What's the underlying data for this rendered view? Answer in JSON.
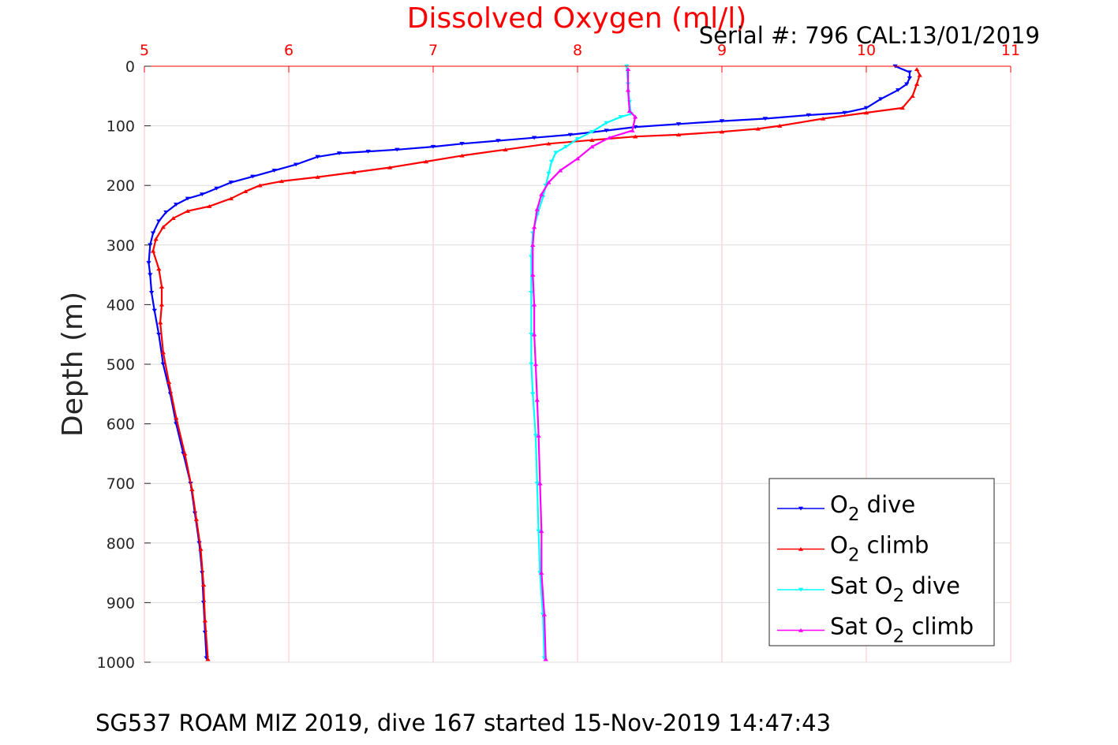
{
  "chart_data": {
    "type": "line",
    "title": "Dissolved Oxygen (ml/l)",
    "subtitle": "Serial #: 796  CAL:13/01/2019",
    "footer": "SG537 ROAM MIZ 2019, dive 167 started 15-Nov-2019 14:47:43",
    "xlabel": "",
    "ylabel": "Depth (m)",
    "xlim": [
      5,
      11
    ],
    "ylim": [
      0,
      1000
    ],
    "y_reversed": true,
    "x_axis_position": "top",
    "x_ticks": [
      5,
      6,
      7,
      8,
      9,
      10,
      11
    ],
    "y_ticks": [
      0,
      100,
      200,
      300,
      400,
      500,
      600,
      700,
      800,
      900,
      1000
    ],
    "grid": true,
    "legend_position": "bottom-right",
    "colors": {
      "x_tick": "#ff0000",
      "grid": "#ffc0cb",
      "axis": "#ff0000"
    },
    "series": [
      {
        "label": "O2 dive",
        "legend_main": "O",
        "legend_sub": "2",
        "legend_tail": " dive",
        "color": "#0000ff",
        "marker": "triangle-down",
        "points": [
          [
            10.2,
            0
          ],
          [
            10.3,
            10
          ],
          [
            10.3,
            20
          ],
          [
            10.28,
            30
          ],
          [
            10.22,
            40
          ],
          [
            10.1,
            55
          ],
          [
            10.0,
            70
          ],
          [
            9.85,
            78
          ],
          [
            9.6,
            82
          ],
          [
            9.3,
            88
          ],
          [
            9.0,
            92
          ],
          [
            8.7,
            97
          ],
          [
            8.4,
            102
          ],
          [
            8.2,
            108
          ],
          [
            7.95,
            115
          ],
          [
            7.7,
            120
          ],
          [
            7.45,
            125
          ],
          [
            7.2,
            130
          ],
          [
            7.0,
            135
          ],
          [
            6.75,
            140
          ],
          [
            6.55,
            143
          ],
          [
            6.35,
            146
          ],
          [
            6.2,
            152
          ],
          [
            6.05,
            165
          ],
          [
            5.9,
            175
          ],
          [
            5.75,
            185
          ],
          [
            5.6,
            195
          ],
          [
            5.5,
            205
          ],
          [
            5.4,
            215
          ],
          [
            5.3,
            222
          ],
          [
            5.22,
            232
          ],
          [
            5.15,
            245
          ],
          [
            5.1,
            260
          ],
          [
            5.06,
            280
          ],
          [
            5.04,
            300
          ],
          [
            5.03,
            330
          ],
          [
            5.04,
            350
          ],
          [
            5.05,
            380
          ],
          [
            5.07,
            410
          ],
          [
            5.1,
            450
          ],
          [
            5.13,
            500
          ],
          [
            5.18,
            550
          ],
          [
            5.22,
            600
          ],
          [
            5.27,
            650
          ],
          [
            5.32,
            700
          ],
          [
            5.35,
            750
          ],
          [
            5.38,
            800
          ],
          [
            5.4,
            850
          ],
          [
            5.41,
            900
          ],
          [
            5.42,
            950
          ],
          [
            5.43,
            993
          ]
        ]
      },
      {
        "label": "O2 climb",
        "legend_main": "O",
        "legend_sub": "2",
        "legend_tail": " climb",
        "color": "#ff0000",
        "marker": "triangle-up",
        "points": [
          [
            10.35,
            5
          ],
          [
            10.37,
            15
          ],
          [
            10.35,
            30
          ],
          [
            10.32,
            50
          ],
          [
            10.25,
            70
          ],
          [
            10.0,
            78
          ],
          [
            9.7,
            88
          ],
          [
            9.4,
            100
          ],
          [
            9.25,
            105
          ],
          [
            9.0,
            110
          ],
          [
            8.7,
            115
          ],
          [
            8.4,
            118
          ],
          [
            8.1,
            124
          ],
          [
            7.8,
            130
          ],
          [
            7.5,
            140
          ],
          [
            7.2,
            150
          ],
          [
            6.95,
            160
          ],
          [
            6.7,
            170
          ],
          [
            6.45,
            178
          ],
          [
            6.2,
            186
          ],
          [
            5.95,
            193
          ],
          [
            5.8,
            200
          ],
          [
            5.7,
            210
          ],
          [
            5.6,
            222
          ],
          [
            5.45,
            235
          ],
          [
            5.3,
            243
          ],
          [
            5.2,
            255
          ],
          [
            5.13,
            270
          ],
          [
            5.08,
            290
          ],
          [
            5.06,
            310
          ],
          [
            5.1,
            340
          ],
          [
            5.12,
            370
          ],
          [
            5.12,
            400
          ],
          [
            5.11,
            430
          ],
          [
            5.13,
            480
          ],
          [
            5.17,
            530
          ],
          [
            5.22,
            590
          ],
          [
            5.28,
            650
          ],
          [
            5.33,
            710
          ],
          [
            5.36,
            760
          ],
          [
            5.39,
            810
          ],
          [
            5.41,
            870
          ],
          [
            5.42,
            930
          ],
          [
            5.44,
            995
          ]
        ]
      },
      {
        "label": "Sat O2 dive",
        "legend_main": "Sat O",
        "legend_sub": "2",
        "legend_tail": " dive",
        "color": "#00ffff",
        "marker": "triangle-down",
        "points": [
          [
            8.34,
            0
          ],
          [
            8.35,
            30
          ],
          [
            8.36,
            60
          ],
          [
            8.37,
            80
          ],
          [
            8.3,
            85
          ],
          [
            8.2,
            95
          ],
          [
            8.1,
            110
          ],
          [
            8.0,
            122
          ],
          [
            7.92,
            135
          ],
          [
            7.85,
            145
          ],
          [
            7.82,
            160
          ],
          [
            7.8,
            180
          ],
          [
            7.78,
            200
          ],
          [
            7.76,
            220
          ],
          [
            7.72,
            250
          ],
          [
            7.69,
            280
          ],
          [
            7.68,
            320
          ],
          [
            7.68,
            380
          ],
          [
            7.68,
            450
          ],
          [
            7.68,
            500
          ],
          [
            7.69,
            550
          ],
          [
            7.71,
            620
          ],
          [
            7.72,
            700
          ],
          [
            7.73,
            780
          ],
          [
            7.74,
            850
          ],
          [
            7.76,
            920
          ],
          [
            7.77,
            993
          ]
        ]
      },
      {
        "label": "Sat O2 climb",
        "legend_main": "Sat O",
        "legend_sub": "2",
        "legend_tail": " climb",
        "color": "#ff00ff",
        "marker": "triangle-up",
        "points": [
          [
            8.35,
            5
          ],
          [
            8.35,
            40
          ],
          [
            8.36,
            75
          ],
          [
            8.4,
            85
          ],
          [
            8.38,
            108
          ],
          [
            8.22,
            120
          ],
          [
            8.1,
            135
          ],
          [
            8.0,
            155
          ],
          [
            7.88,
            175
          ],
          [
            7.8,
            195
          ],
          [
            7.75,
            215
          ],
          [
            7.72,
            240
          ],
          [
            7.7,
            270
          ],
          [
            7.69,
            300
          ],
          [
            7.69,
            350
          ],
          [
            7.7,
            400
          ],
          [
            7.7,
            450
          ],
          [
            7.71,
            500
          ],
          [
            7.72,
            560
          ],
          [
            7.73,
            620
          ],
          [
            7.74,
            700
          ],
          [
            7.75,
            780
          ],
          [
            7.75,
            850
          ],
          [
            7.77,
            920
          ],
          [
            7.78,
            995
          ]
        ]
      }
    ]
  }
}
